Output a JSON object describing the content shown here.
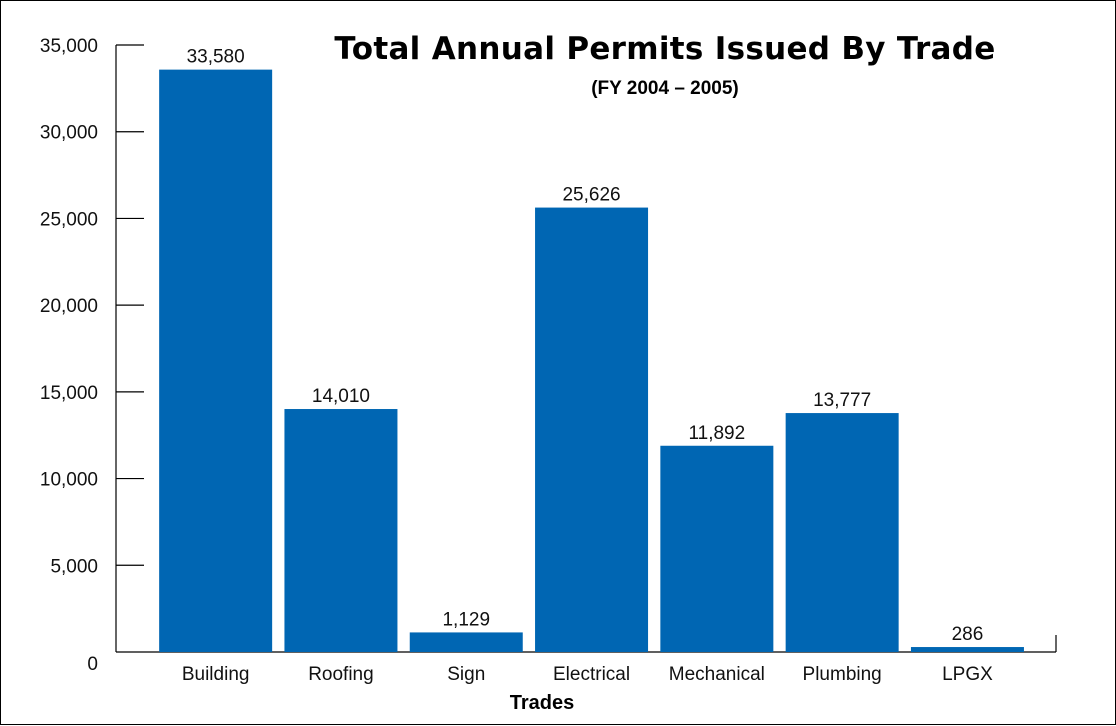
{
  "chart_data": {
    "type": "bar",
    "title": "Total Annual Permits Issued By Trade",
    "subtitle": "(FY 2004 – 2005)",
    "xlabel": "Trades",
    "ylabel": "",
    "categories": [
      "Building",
      "Roofing",
      "Sign",
      "Electrical",
      "Mechanical",
      "Plumbing",
      "LPGX"
    ],
    "values": [
      33580,
      14010,
      1129,
      25626,
      11892,
      13777,
      286
    ],
    "value_labels": [
      "33,580",
      "14,010",
      "1,129",
      "25,626",
      "11,892",
      "13,777",
      "286"
    ],
    "ylim": [
      0,
      35000
    ],
    "yticks": [
      0,
      5000,
      10000,
      15000,
      20000,
      25000,
      30000,
      35000
    ],
    "ytick_labels": [
      "0",
      "5,000",
      "10,000",
      "15,000",
      "20,000",
      "25,000",
      "30,000",
      "35,000"
    ],
    "grid": false,
    "legend": "none",
    "bar_color": "#0066b3"
  }
}
